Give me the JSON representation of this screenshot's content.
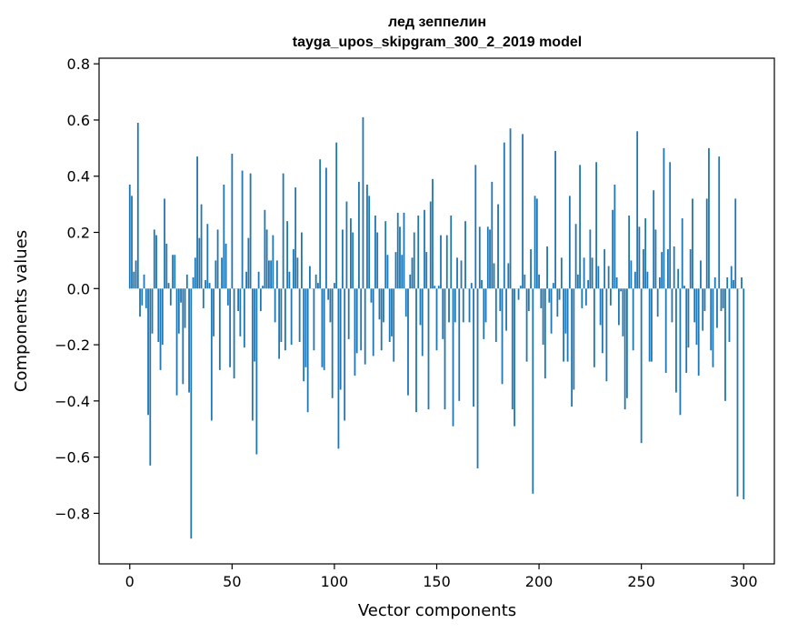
{
  "chart_data": {
    "type": "bar",
    "title": "лед зеппелин",
    "subtitle": "tayga_upos_skipgram_300_2_2019 model",
    "xlabel": "Vector components",
    "ylabel": "Components values",
    "xlim": [
      -15,
      315
    ],
    "ylim": [
      -0.98,
      0.82
    ],
    "xticks": [
      0,
      50,
      100,
      150,
      200,
      250,
      300
    ],
    "xtick_labels": [
      "0",
      "50",
      "100",
      "150",
      "200",
      "250",
      "300"
    ],
    "yticks": [
      -0.8,
      -0.6,
      -0.4,
      -0.2,
      0.0,
      0.2,
      0.4,
      0.6,
      0.8
    ],
    "ytick_labels": [
      "−0.8",
      "−0.6",
      "−0.4",
      "−0.2",
      "0.0",
      "0.2",
      "0.4",
      "0.6",
      "0.8"
    ],
    "grid": false,
    "bar_color": "#1f77b4",
    "values": [
      0.37,
      0.33,
      0.06,
      0.1,
      0.59,
      -0.1,
      -0.06,
      0.05,
      -0.07,
      -0.45,
      -0.63,
      -0.16,
      0.21,
      0.19,
      -0.19,
      -0.29,
      -0.2,
      0.32,
      0.16,
      0.02,
      -0.06,
      0.12,
      0.12,
      -0.38,
      -0.16,
      -0.05,
      -0.34,
      -0.14,
      0.05,
      -0.37,
      -0.89,
      0.04,
      0.11,
      0.47,
      0.18,
      0.3,
      -0.07,
      0.03,
      0.23,
      0.02,
      -0.47,
      -0.17,
      0.1,
      0.21,
      -0.29,
      0.11,
      0.37,
      0.16,
      -0.06,
      -0.28,
      0.48,
      -0.32,
      0.0,
      -0.08,
      -0.17,
      0.42,
      -0.21,
      0.06,
      0.18,
      0.41,
      -0.47,
      -0.26,
      -0.59,
      0.06,
      -0.08,
      0.01,
      0.28,
      0.21,
      0.1,
      0.1,
      0.19,
      -0.12,
      0.1,
      -0.25,
      -0.19,
      0.41,
      -0.22,
      0.24,
      0.06,
      -0.2,
      0.14,
      0.36,
      0.11,
      -0.19,
      0.2,
      -0.33,
      -0.28,
      -0.44,
      0.08,
      0.0,
      -0.22,
      0.05,
      0.02,
      0.46,
      -0.28,
      -0.29,
      0.43,
      -0.04,
      -0.12,
      -0.39,
      0.02,
      0.52,
      -0.57,
      -0.36,
      0.21,
      -0.47,
      0.31,
      -0.18,
      0.25,
      0.2,
      -0.31,
      -0.23,
      0.38,
      -0.22,
      0.61,
      -0.27,
      0.37,
      0.33,
      -0.05,
      -0.24,
      0.26,
      0.2,
      -0.11,
      -0.22,
      -0.12,
      0.24,
      0.12,
      -0.19,
      -0.17,
      -0.26,
      0.13,
      0.27,
      0.22,
      0.12,
      0.27,
      -0.1,
      -0.38,
      0.05,
      0.11,
      0.2,
      -0.44,
      0.26,
      -0.13,
      -0.24,
      0.28,
      0.13,
      -0.43,
      0.31,
      0.39,
      0.01,
      -0.22,
      0.01,
      0.19,
      -0.18,
      -0.43,
      0.19,
      -0.12,
      0.26,
      -0.49,
      -0.12,
      0.11,
      -0.4,
      0.1,
      -0.12,
      0.24,
      0.0,
      -0.12,
      0.02,
      -0.42,
      0.44,
      -0.64,
      0.22,
      0.03,
      -0.18,
      -0.12,
      0.22,
      0.21,
      0.38,
      0.09,
      -0.19,
      0.3,
      -0.08,
      -0.34,
      0.52,
      -0.15,
      0.09,
      0.57,
      -0.43,
      -0.49,
      0.0,
      -0.04,
      0.01,
      0.55,
      0.05,
      -0.26,
      -0.08,
      0.14,
      -0.73,
      0.33,
      0.32,
      0.05,
      -0.07,
      -0.2,
      -0.32,
      0.15,
      -0.05,
      -0.16,
      0.02,
      0.49,
      -0.1,
      -0.04,
      0.11,
      -0.26,
      -0.16,
      -0.26,
      0.33,
      -0.42,
      -0.36,
      0.23,
      0.05,
      0.44,
      -0.07,
      0.11,
      -0.06,
      0.03,
      0.21,
      0.11,
      -0.28,
      0.45,
      0.08,
      -0.13,
      -0.23,
      0.14,
      -0.33,
      0.08,
      -0.06,
      0.28,
      0.37,
      0.04,
      -0.13,
      -0.01,
      -0.17,
      -0.43,
      -0.39,
      0.26,
      0.1,
      -0.22,
      0.06,
      0.56,
      0.22,
      -0.55,
      0.14,
      0.25,
      0.06,
      -0.26,
      -0.26,
      0.35,
      0.21,
      -0.1,
      0.04,
      0.13,
      0.5,
      -0.3,
      0.14,
      0.45,
      -0.12,
      0.15,
      -0.37,
      0.07,
      -0.45,
      0.25,
      0.01,
      -0.3,
      -0.21,
      0.14,
      0.32,
      -0.12,
      -0.2,
      -0.31,
      0.1,
      -0.15,
      -0.08,
      0.32,
      0.5,
      -0.22,
      -0.28,
      0.04,
      -0.14,
      0.47,
      -0.08,
      -0.07,
      -0.4,
      0.04,
      -0.19,
      0.08,
      0.03,
      0.32,
      -0.74,
      0.0,
      0.04,
      -0.75
    ]
  }
}
